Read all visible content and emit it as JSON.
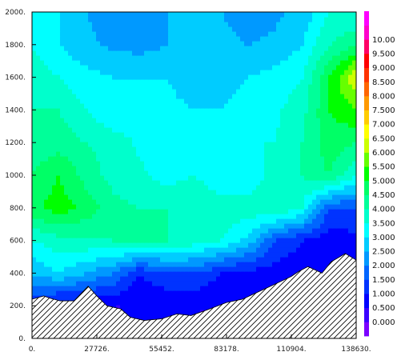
{
  "chart_data": {
    "type": "heatmap",
    "title": "",
    "xlabel": "",
    "ylabel": "",
    "xlim": [
      0,
      138630
    ],
    "ylim": [
      0,
      2000
    ],
    "x_tick_labels": [
      "0.",
      "27726.",
      "55452.",
      "83178.",
      "110904.",
      "138630."
    ],
    "x_tick_values": [
      0,
      27726,
      55452,
      83178,
      110904,
      138630
    ],
    "y_tick_labels": [
      "0.",
      "200.",
      "400.",
      "600.",
      "800.",
      "1000.",
      "1200.",
      "1400.",
      "1600.",
      "1800.",
      "2000."
    ],
    "y_tick_values": [
      0,
      200,
      400,
      600,
      800,
      1000,
      1200,
      1400,
      1600,
      1800,
      2000
    ],
    "colorbar": {
      "labels": [
        "0.000",
        "0.500",
        "1.000",
        "1.500",
        "2.000",
        "2.500",
        "3.000",
        "3.500",
        "4.000",
        "4.500",
        "5.000",
        "5.500",
        "6.000",
        "6.500",
        "7.000",
        "7.500",
        "8.000",
        "8.500",
        "9.000",
        "9.500",
        "10.00"
      ],
      "levels": [
        -0.5,
        0,
        0.5,
        1,
        1.5,
        2,
        2.5,
        3,
        3.5,
        4,
        4.5,
        5,
        5.5,
        6,
        6.5,
        7,
        7.5,
        8,
        8.5,
        9,
        9.5,
        10,
        10.5
      ],
      "colors": [
        "#7b00ff",
        "#3b00ff",
        "#0000ff",
        "#0033ff",
        "#0066ff",
        "#0099ff",
        "#00ccff",
        "#00ffff",
        "#00ffcc",
        "#00ff99",
        "#00ff66",
        "#00ff00",
        "#66ff00",
        "#ccff00",
        "#ffff00",
        "#ffcc00",
        "#ff9900",
        "#ff6600",
        "#ff3300",
        "#ff0000",
        "#ff0066",
        "#ff00cc",
        "#ff00ff"
      ]
    },
    "terrain": {
      "x": [
        0,
        5000,
        8000,
        12000,
        18000,
        24000,
        27726,
        32000,
        38000,
        42000,
        48000,
        55452,
        62000,
        68000,
        75000,
        83178,
        90000,
        96000,
        102000,
        108000,
        110904,
        114000,
        118000,
        124000,
        128000,
        134000,
        138630
      ],
      "y": [
        240,
        260,
        245,
        230,
        230,
        320,
        260,
        200,
        180,
        130,
        110,
        120,
        150,
        140,
        175,
        220,
        240,
        280,
        320,
        360,
        380,
        410,
        440,
        400,
        470,
        520,
        480
      ]
    },
    "grid": {
      "x": [
        0,
        11553,
        23105,
        34658,
        46210,
        57763,
        69315,
        80868,
        92420,
        103973,
        115525,
        127078,
        138630
      ],
      "y": [
        0,
        200,
        400,
        600,
        800,
        1000,
        1200,
        1400,
        1600,
        1800,
        2000
      ],
      "z": [
        [
          0.5,
          0.5,
          0.5,
          0.5,
          0.5,
          0.5,
          0.5,
          0.5,
          0.5,
          0.5,
          0.5,
          0.5,
          0.5
        ],
        [
          1.0,
          0.5,
          0.5,
          0.5,
          0.5,
          0.5,
          0.5,
          0.5,
          0.5,
          0.5,
          0.5,
          0.5,
          0.5
        ],
        [
          2.5,
          3.0,
          2.5,
          2.0,
          1.0,
          1.5,
          1.5,
          1.0,
          0.8,
          0.7,
          0.7,
          0.5,
          0.5
        ],
        [
          3.5,
          3.8,
          3.9,
          4.0,
          4.2,
          4.0,
          3.8,
          3.5,
          2.8,
          1.5,
          1.0,
          0.7,
          0.8
        ],
        [
          4.8,
          5.3,
          4.8,
          4.2,
          4.0,
          4.0,
          4.0,
          3.8,
          3.8,
          4.0,
          3.5,
          1.5,
          1.5
        ],
        [
          4.5,
          5.0,
          4.3,
          3.8,
          3.6,
          3.3,
          3.5,
          3.1,
          3.0,
          3.8,
          4.0,
          4.5,
          3.5
        ],
        [
          4.2,
          4.3,
          4.0,
          3.8,
          3.4,
          3.3,
          3.3,
          3.4,
          3.5,
          3.5,
          4.0,
          4.8,
          4.5
        ],
        [
          4.0,
          4.0,
          3.5,
          3.0,
          3.2,
          3.1,
          3.0,
          3.0,
          3.2,
          3.4,
          3.8,
          5.0,
          5.5
        ],
        [
          3.8,
          3.5,
          3.2,
          3.0,
          3.0,
          3.0,
          2.8,
          2.8,
          3.0,
          3.2,
          3.5,
          5.0,
          6.5
        ],
        [
          3.5,
          3.0,
          2.6,
          2.4,
          2.3,
          2.5,
          2.6,
          2.6,
          2.5,
          2.6,
          3.0,
          4.0,
          4.5
        ],
        [
          3.5,
          3.0,
          2.5,
          2.3,
          2.3,
          2.5,
          2.6,
          2.5,
          2.3,
          2.4,
          2.6,
          3.5,
          3.5
        ]
      ]
    }
  }
}
